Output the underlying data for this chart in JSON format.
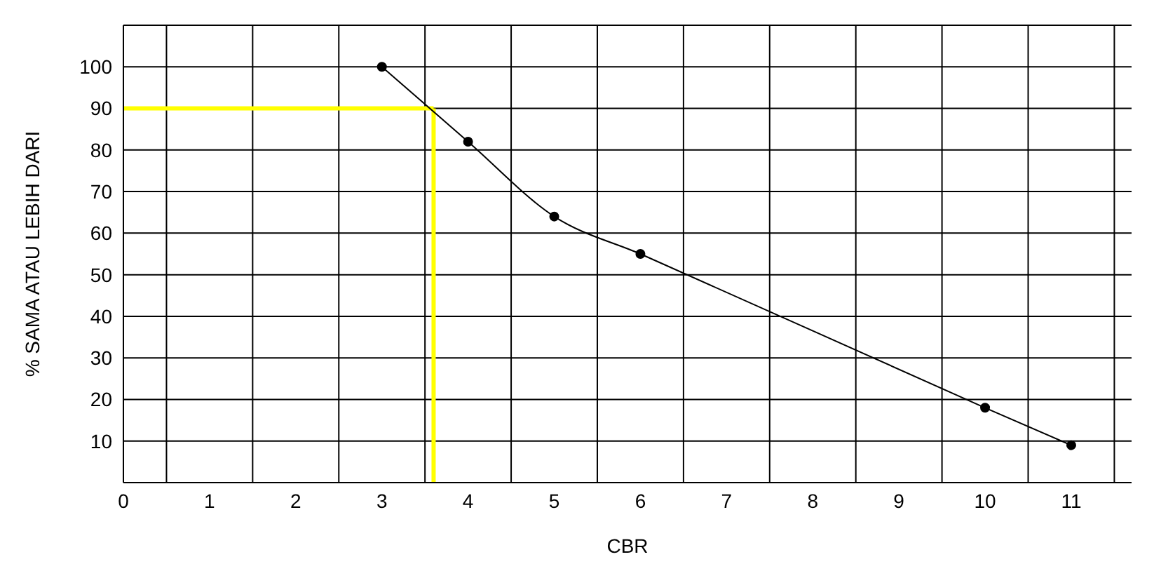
{
  "chart_data": {
    "type": "line",
    "xlabel": "CBR",
    "ylabel": "% SAMA ATAU LEBIH DARI",
    "x": [
      3,
      4,
      5,
      6,
      10,
      11
    ],
    "series": [
      {
        "color": "#000000",
        "values": [
          100,
          82,
          64,
          55,
          18,
          9
        ]
      }
    ],
    "xlim": [
      0,
      11.7
    ],
    "xticks": [
      0,
      {
        "value": 0.5,
        "label": null
      },
      1,
      {
        "value": 1.5,
        "label": null
      },
      2,
      {
        "value": 2.5,
        "label": null
      },
      3,
      {
        "value": 3.5,
        "label": null
      },
      4,
      {
        "value": 4.5,
        "label": null
      },
      5,
      {
        "value": 5.5,
        "label": null
      },
      6,
      {
        "value": 6.5,
        "label": null
      },
      7,
      {
        "value": 7.5,
        "label": null
      },
      8,
      {
        "value": 8.5,
        "label": null
      },
      9,
      {
        "value": 9.5,
        "label": null
      },
      10,
      {
        "value": 10.5,
        "label": null
      },
      11,
      {
        "value": 11.5,
        "label": null
      }
    ],
    "ylim": [
      0,
      110
    ],
    "yticks": [
      {
        "value": 0,
        "label": null
      },
      10,
      20,
      30,
      40,
      50,
      60,
      70,
      80,
      90,
      100
    ],
    "grid": true,
    "marker": "circle",
    "line_style": "solid",
    "ref_lines": [
      {
        "axis": "y",
        "value": 90,
        "color": "#ffff00"
      },
      {
        "axis": "x",
        "value": 3.6,
        "color": "#ffff00"
      }
    ]
  }
}
